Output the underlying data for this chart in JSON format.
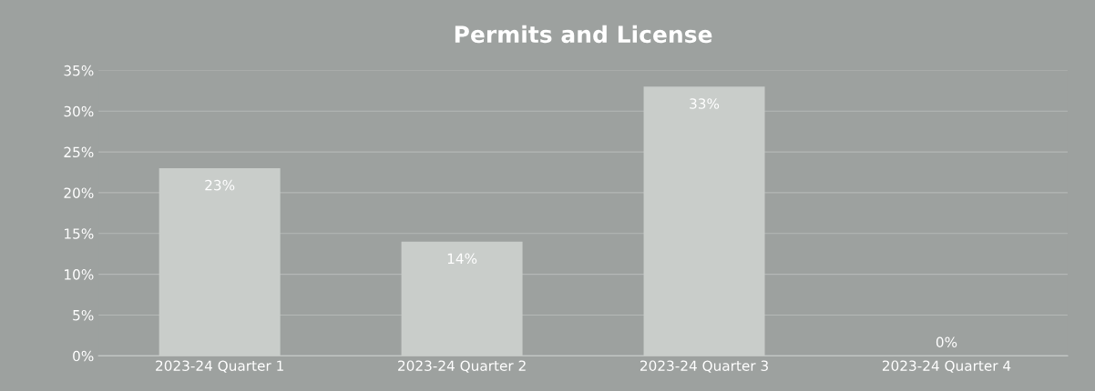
{
  "chart_data": {
    "type": "bar",
    "title": "Permits and License",
    "categories": [
      "2023-24 Quarter 1",
      "2023-24 Quarter 2",
      "2023-24 Quarter 3",
      "2023-24 Quarter 4"
    ],
    "values": [
      23,
      14,
      33,
      0
    ],
    "value_labels": [
      "23%",
      "14%",
      "33%",
      "0%"
    ],
    "color": "#c9cdca",
    "ylim": [
      0,
      35
    ],
    "yticks": [
      {
        "value": 0,
        "label": "0%"
      },
      {
        "value": 5,
        "label": "5%"
      },
      {
        "value": 10,
        "label": "10%"
      },
      {
        "value": 15,
        "label": "15%"
      },
      {
        "value": 20,
        "label": "20%"
      },
      {
        "value": 25,
        "label": "25%"
      },
      {
        "value": 30,
        "label": "30%"
      },
      {
        "value": 35,
        "label": "35%"
      }
    ],
    "grid": "y",
    "legend": false
  }
}
